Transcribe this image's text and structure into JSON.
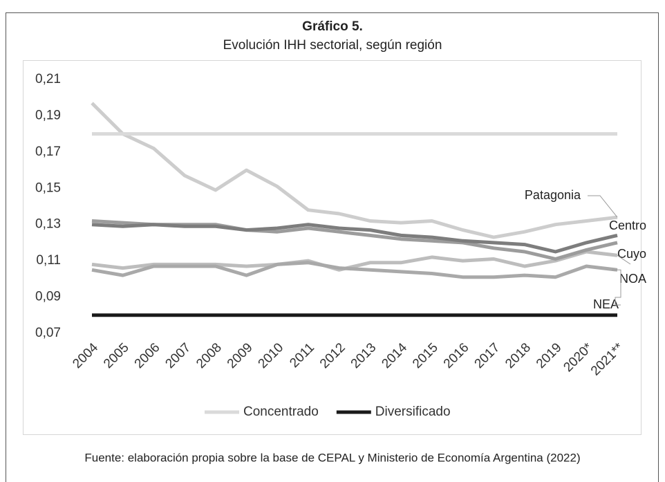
{
  "chart_data": {
    "type": "line",
    "title": "Gráfico 5.",
    "subtitle": "Evolución IHH sectorial, según región",
    "source": "Fuente: elaboración propia sobre la base de CEPAL y Ministerio de Economía Argentina (2022)",
    "categories": [
      "2004",
      "2005",
      "2006",
      "2007",
      "2008",
      "2009",
      "2010",
      "2011",
      "2012",
      "2013",
      "2014",
      "2015",
      "2016",
      "2017",
      "2018",
      "2019",
      "2020*",
      "2021**"
    ],
    "ylim": [
      0.07,
      0.21
    ],
    "yticks": [
      {
        "value": 0.07,
        "label": "0,07"
      },
      {
        "value": 0.09,
        "label": "0,09"
      },
      {
        "value": 0.11,
        "label": "0,11"
      },
      {
        "value": 0.13,
        "label": "0,13"
      },
      {
        "value": 0.15,
        "label": "0,15"
      },
      {
        "value": 0.17,
        "label": "0,17"
      },
      {
        "value": 0.19,
        "label": "0,19"
      },
      {
        "value": 0.21,
        "label": "0,21"
      }
    ],
    "grid": false,
    "series": [
      {
        "name": "Concentrado",
        "color": "#dadada",
        "legend": true,
        "values": [
          0.18,
          0.18,
          0.18,
          0.18,
          0.18,
          0.18,
          0.18,
          0.18,
          0.18,
          0.18,
          0.18,
          0.18,
          0.18,
          0.18,
          0.18,
          0.18,
          0.18,
          0.18
        ]
      },
      {
        "name": "Diversificado",
        "color": "#1a1a1a",
        "legend": true,
        "values": [
          0.08,
          0.08,
          0.08,
          0.08,
          0.08,
          0.08,
          0.08,
          0.08,
          0.08,
          0.08,
          0.08,
          0.08,
          0.08,
          0.08,
          0.08,
          0.08,
          0.08,
          0.08
        ]
      },
      {
        "name": "Patagonia",
        "color": "#cdcdcd",
        "legend": false,
        "values": [
          0.197,
          0.18,
          0.172,
          0.157,
          0.149,
          0.16,
          0.151,
          0.138,
          0.136,
          0.132,
          0.131,
          0.132,
          0.127,
          0.123,
          0.126,
          0.13,
          0.132,
          0.134
        ]
      },
      {
        "name": "Centro",
        "color": "#7d7d7d",
        "legend": false,
        "values": [
          0.13,
          0.129,
          0.13,
          0.129,
          0.129,
          0.127,
          0.128,
          0.13,
          0.128,
          0.127,
          0.124,
          0.123,
          0.121,
          0.12,
          0.119,
          0.115,
          0.12,
          0.124
        ]
      },
      {
        "name": "Cuyo",
        "color": "#9c9c9c",
        "legend": false,
        "values": [
          0.132,
          0.131,
          0.13,
          0.13,
          0.13,
          0.127,
          0.126,
          0.128,
          0.126,
          0.124,
          0.122,
          0.121,
          0.12,
          0.117,
          0.115,
          0.111,
          0.116,
          0.12
        ]
      },
      {
        "name": "NOA",
        "color": "#bdbdbd",
        "legend": false,
        "values": [
          0.108,
          0.106,
          0.108,
          0.108,
          0.108,
          0.107,
          0.108,
          0.11,
          0.105,
          0.109,
          0.109,
          0.112,
          0.11,
          0.111,
          0.107,
          0.11,
          0.115,
          0.113
        ]
      },
      {
        "name": "NEA",
        "color": "#a9a9a9",
        "legend": false,
        "values": [
          0.105,
          0.102,
          0.107,
          0.107,
          0.107,
          0.102,
          0.108,
          0.109,
          0.106,
          0.105,
          0.104,
          0.103,
          0.101,
          0.101,
          0.102,
          0.101,
          0.107,
          0.105
        ]
      }
    ]
  }
}
